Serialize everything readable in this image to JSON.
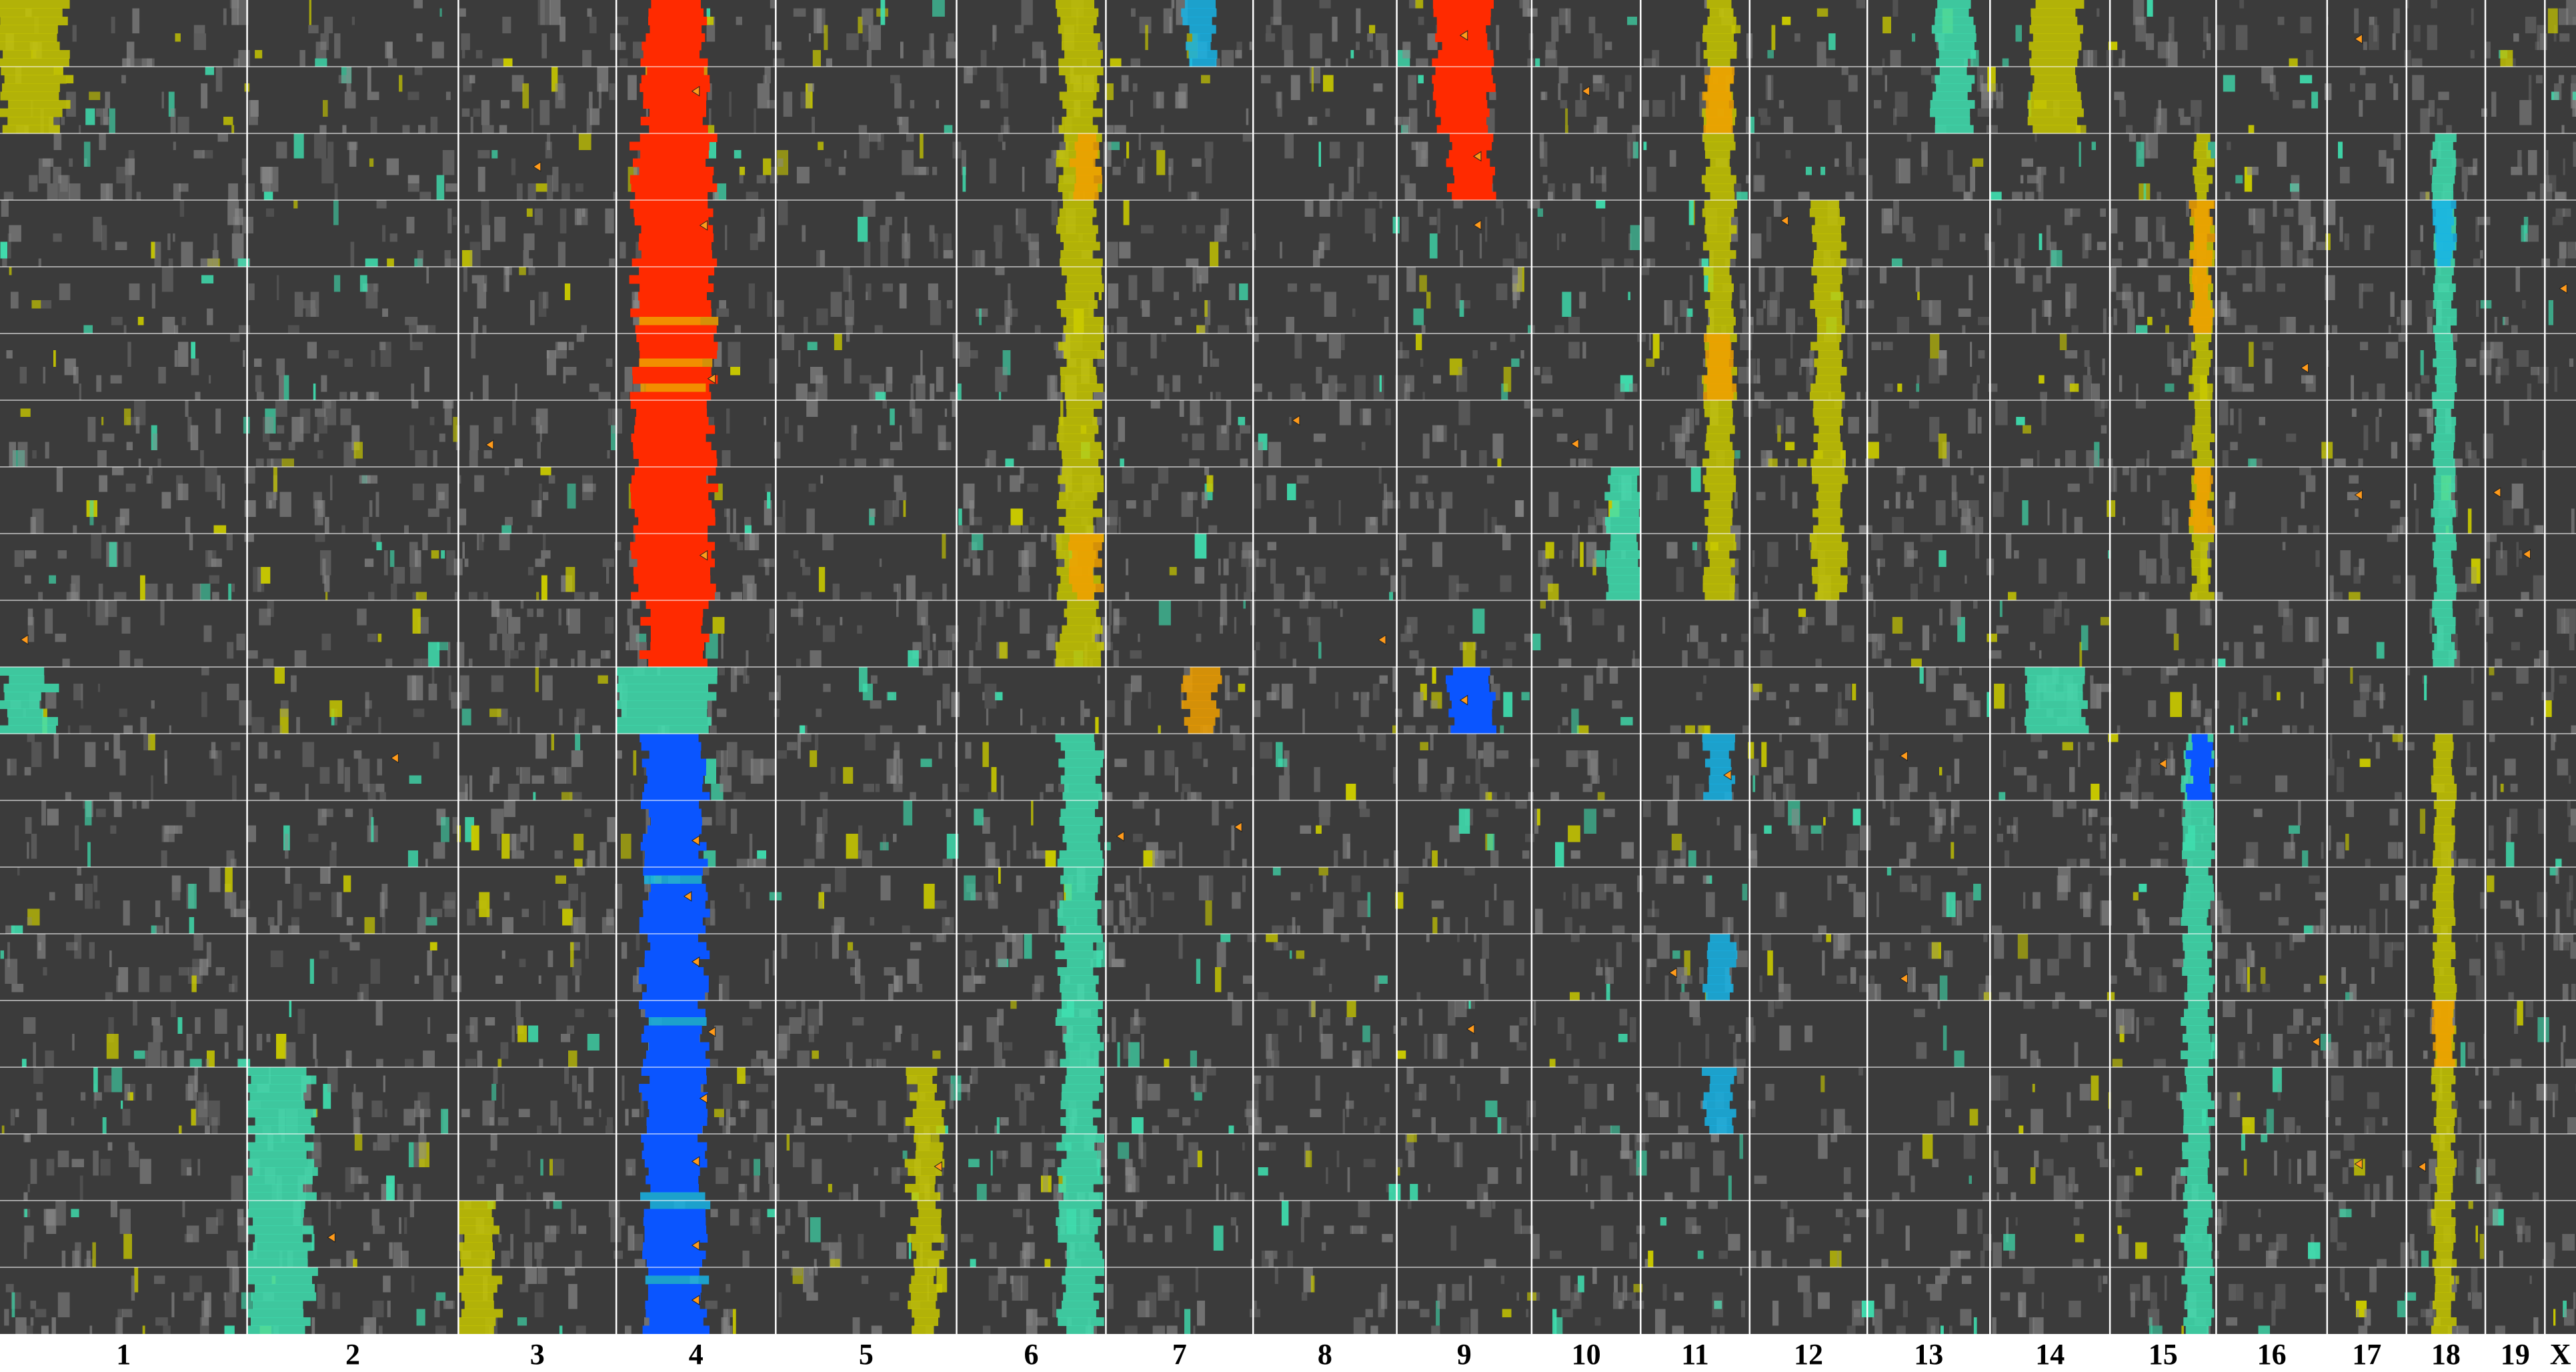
{
  "chart_data": {
    "type": "heatmap",
    "title": "",
    "xlabel": "",
    "ylabel": "",
    "grid": true,
    "legend": "none",
    "n_rows": 20,
    "categories": [
      "1",
      "2",
      "3",
      "4",
      "5",
      "6",
      "7",
      "8",
      "9",
      "10",
      "11",
      "12",
      "13",
      "14",
      "15",
      "16",
      "17",
      "18",
      "19",
      "X"
    ],
    "chromosome_relative_widths": [
      1.0,
      0.855,
      0.639,
      0.645,
      0.732,
      0.604,
      0.596,
      0.581,
      0.546,
      0.441,
      0.441,
      0.476,
      0.497,
      0.485,
      0.43,
      0.449,
      0.321,
      0.319,
      0.241,
      0.126
    ],
    "colors": {
      "background": "#3b3b3b",
      "neutral_light": "#8a8a8a",
      "gain_low": "#c8c800",
      "gain_mid": "#f0a000",
      "gain_high": "#ff2a00",
      "loss_low": "#3fe0b0",
      "loss_mid": "#18b4e6",
      "loss_high": "#0a55ff",
      "grid": "#ffffff",
      "marker": "#ff9a1a"
    },
    "scale_meaning": {
      "positive": "gain",
      "negative": "loss"
    },
    "regions": [
      {
        "chrom": "4",
        "start": 0.18,
        "end": 0.55,
        "rows": [
          0,
          1
        ],
        "value": 3
      },
      {
        "chrom": "4",
        "start": 0.18,
        "end": 0.55,
        "rows": [
          1,
          2,
          3,
          4,
          5,
          6,
          7,
          8,
          9
        ],
        "value": 3
      },
      {
        "chrom": "4",
        "start": 0.12,
        "end": 0.6,
        "rows": [
          2,
          3,
          4,
          5,
          6,
          7,
          8
        ],
        "value": 3
      },
      {
        "chrom": "4",
        "start": 0.18,
        "end": 0.55,
        "rows": [
          11,
          12,
          13,
          14,
          15,
          16,
          17,
          18,
          19
        ],
        "value": -3
      },
      {
        "chrom": "4",
        "start": 0.0,
        "end": 0.6,
        "rows": [
          10
        ],
        "value": -1
      },
      {
        "chrom": "9",
        "start": 0.3,
        "end": 0.7,
        "rows": [
          0,
          1
        ],
        "value": 3
      },
      {
        "chrom": "9",
        "start": 0.4,
        "end": 0.7,
        "rows": [
          2
        ],
        "value": 3
      },
      {
        "chrom": "9",
        "start": 0.4,
        "end": 0.7,
        "rows": [
          10
        ],
        "value": -3
      },
      {
        "chrom": "6",
        "start": 0.7,
        "end": 0.95,
        "rows": [
          0,
          1,
          2,
          3,
          4,
          5,
          6,
          7,
          8,
          9
        ],
        "value": 1
      },
      {
        "chrom": "6",
        "start": 0.78,
        "end": 0.95,
        "rows": [
          2,
          8
        ],
        "value": 2
      },
      {
        "chrom": "6",
        "start": 0.7,
        "end": 0.95,
        "rows": [
          11,
          12,
          13,
          14,
          15,
          16,
          17,
          18,
          19
        ],
        "value": -1
      },
      {
        "chrom": "15",
        "start": 0.78,
        "end": 0.95,
        "rows": [
          2,
          3,
          4,
          5,
          6,
          7,
          8
        ],
        "value": 1
      },
      {
        "chrom": "15",
        "start": 0.78,
        "end": 0.95,
        "rows": [
          3,
          4,
          7
        ],
        "value": 2
      },
      {
        "chrom": "15",
        "start": 0.7,
        "end": 0.95,
        "rows": [
          11,
          12,
          13,
          14,
          15,
          16,
          17,
          18,
          19
        ],
        "value": -1
      },
      {
        "chrom": "15",
        "start": 0.75,
        "end": 0.95,
        "rows": [
          11
        ],
        "value": -3
      },
      {
        "chrom": "18",
        "start": 0.35,
        "end": 0.6,
        "rows": [
          2,
          3,
          4,
          5,
          6,
          7,
          8,
          9
        ],
        "value": -1
      },
      {
        "chrom": "18",
        "start": 0.35,
        "end": 0.6,
        "rows": [
          3
        ],
        "value": -2
      },
      {
        "chrom": "18",
        "start": 0.35,
        "end": 0.6,
        "rows": [
          11,
          12,
          13,
          14,
          15,
          16,
          17,
          18,
          19
        ],
        "value": 1
      },
      {
        "chrom": "18",
        "start": 0.35,
        "end": 0.6,
        "rows": [
          15
        ],
        "value": 2
      },
      {
        "chrom": "11",
        "start": 0.6,
        "end": 0.85,
        "rows": [
          0,
          1,
          2,
          3,
          4,
          5,
          6,
          7,
          8
        ],
        "value": 1
      },
      {
        "chrom": "11",
        "start": 0.6,
        "end": 0.85,
        "rows": [
          1,
          5
        ],
        "value": 2
      },
      {
        "chrom": "11",
        "start": 0.6,
        "end": 0.85,
        "rows": [
          11,
          14,
          16
        ],
        "value": -2
      },
      {
        "chrom": "14",
        "start": 0.35,
        "end": 0.75,
        "rows": [
          0,
          1
        ],
        "value": 1
      },
      {
        "chrom": "14",
        "start": 0.3,
        "end": 0.8,
        "rows": [
          10
        ],
        "value": -1
      },
      {
        "chrom": "13",
        "start": 0.55,
        "end": 0.85,
        "rows": [
          0,
          1
        ],
        "value": -1
      },
      {
        "chrom": "1",
        "start": 0.0,
        "end": 0.2,
        "rows": [
          10
        ],
        "value": -1
      },
      {
        "chrom": "1",
        "start": 0.0,
        "end": 0.25,
        "rows": [
          0,
          1
        ],
        "value": 1
      },
      {
        "chrom": "7",
        "start": 0.55,
        "end": 0.75,
        "rows": [
          10
        ],
        "value": 2
      },
      {
        "chrom": "7",
        "start": 0.55,
        "end": 0.75,
        "rows": [
          0
        ],
        "value": -2
      },
      {
        "chrom": "2",
        "start": 0.0,
        "end": 0.3,
        "rows": [
          16,
          17,
          18,
          19
        ],
        "value": -1
      },
      {
        "chrom": "3",
        "start": 0.0,
        "end": 0.25,
        "rows": [
          18,
          19
        ],
        "value": 1
      },
      {
        "chrom": "12",
        "start": 0.55,
        "end": 0.8,
        "rows": [
          3,
          4,
          5,
          6,
          7,
          8
        ],
        "value": 1
      },
      {
        "chrom": "10",
        "start": 0.7,
        "end": 1.0,
        "rows": [
          7,
          8
        ],
        "value": -1
      },
      {
        "chrom": "5",
        "start": 0.75,
        "end": 0.9,
        "rows": [
          16,
          17,
          18,
          19
        ],
        "value": 1
      }
    ],
    "markers": [
      {
        "chrom": "4",
        "pos": 0.5,
        "row": 1
      },
      {
        "chrom": "4",
        "pos": 0.55,
        "row": 3
      },
      {
        "chrom": "4",
        "pos": 0.6,
        "row": 5
      },
      {
        "chrom": "4",
        "pos": 0.55,
        "row": 8
      },
      {
        "chrom": "4",
        "pos": 0.5,
        "row": 12
      },
      {
        "chrom": "4",
        "pos": 0.45,
        "row": 13
      },
      {
        "chrom": "4",
        "pos": 0.5,
        "row": 14
      },
      {
        "chrom": "4",
        "pos": 0.6,
        "row": 15
      },
      {
        "chrom": "4",
        "pos": 0.55,
        "row": 16
      },
      {
        "chrom": "4",
        "pos": 0.5,
        "row": 17
      },
      {
        "chrom": "4",
        "pos": 0.5,
        "row": 18
      },
      {
        "chrom": "4",
        "pos": 0.5,
        "row": 19
      },
      {
        "chrom": "9",
        "pos": 0.5,
        "row": 0
      },
      {
        "chrom": "9",
        "pos": 0.6,
        "row": 2
      },
      {
        "chrom": "9",
        "pos": 0.6,
        "row": 3
      },
      {
        "chrom": "9",
        "pos": 0.5,
        "row": 10
      },
      {
        "chrom": "9",
        "pos": 0.55,
        "row": 15
      },
      {
        "chrom": "1",
        "pos": 0.1,
        "row": 9
      },
      {
        "chrom": "2",
        "pos": 0.7,
        "row": 11
      },
      {
        "chrom": "2",
        "pos": 0.4,
        "row": 18
      },
      {
        "chrom": "3",
        "pos": 0.5,
        "row": 2
      },
      {
        "chrom": "3",
        "pos": 0.2,
        "row": 6
      },
      {
        "chrom": "5",
        "pos": 0.9,
        "row": 17
      },
      {
        "chrom": "7",
        "pos": 0.1,
        "row": 12
      },
      {
        "chrom": "7",
        "pos": 0.9,
        "row": 12
      },
      {
        "chrom": "8",
        "pos": 0.3,
        "row": 6
      },
      {
        "chrom": "8",
        "pos": 0.9,
        "row": 9
      },
      {
        "chrom": "10",
        "pos": 0.5,
        "row": 1
      },
      {
        "chrom": "10",
        "pos": 0.4,
        "row": 6
      },
      {
        "chrom": "11",
        "pos": 0.8,
        "row": 11
      },
      {
        "chrom": "11",
        "pos": 0.3,
        "row": 14
      },
      {
        "chrom": "12",
        "pos": 0.3,
        "row": 3
      },
      {
        "chrom": "13",
        "pos": 0.3,
        "row": 11
      },
      {
        "chrom": "13",
        "pos": 0.3,
        "row": 14
      },
      {
        "chrom": "15",
        "pos": 0.5,
        "row": 11
      },
      {
        "chrom": "16",
        "pos": 0.8,
        "row": 5
      },
      {
        "chrom": "16",
        "pos": 0.9,
        "row": 15
      },
      {
        "chrom": "17",
        "pos": 0.4,
        "row": 0
      },
      {
        "chrom": "17",
        "pos": 0.4,
        "row": 7
      },
      {
        "chrom": "17",
        "pos": 0.4,
        "row": 17
      },
      {
        "chrom": "18",
        "pos": 0.2,
        "row": 17
      },
      {
        "chrom": "19",
        "pos": 0.2,
        "row": 7
      },
      {
        "chrom": "19",
        "pos": 0.7,
        "row": 8
      },
      {
        "chrom": "X",
        "pos": 0.6,
        "row": 4
      }
    ]
  }
}
